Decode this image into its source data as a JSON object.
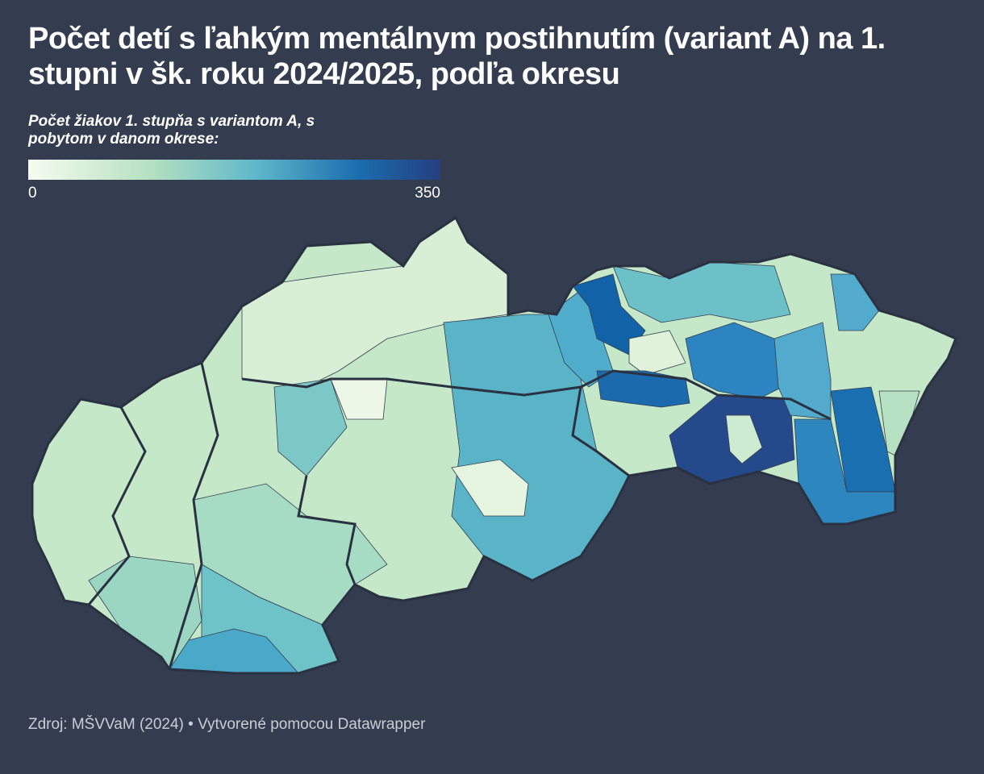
{
  "title": "Počet detí s ľahkým mentálnym postihnutím (variant A) na 1. stupni v šk. roku 2024/2025, podľa okresu",
  "legend": {
    "title": "Počet žiakov 1. stupňa s variantom A, s pobytom v danom okrese:",
    "min": 0,
    "max": 350
  },
  "source": "Zdroj: MŠVVaM (2024) • Vytvorené pomocou Datawrapper"
}
